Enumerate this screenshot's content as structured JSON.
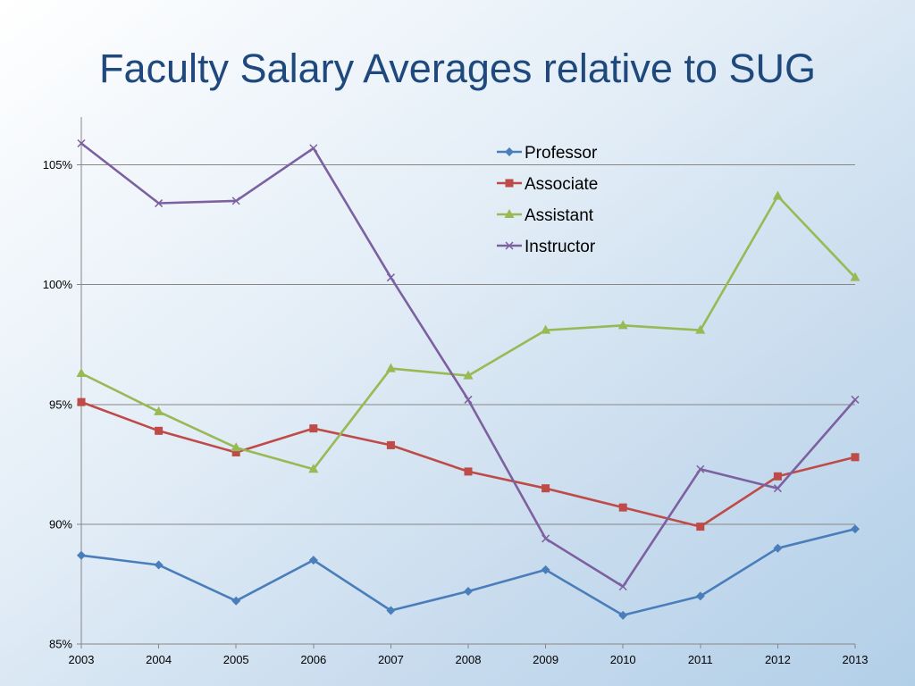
{
  "chart_data": {
    "type": "line",
    "title": "Faculty Salary Averages relative to SUG",
    "categories": [
      "2003",
      "2004",
      "2005",
      "2006",
      "2007",
      "2008",
      "2009",
      "2010",
      "2011",
      "2012",
      "2013"
    ],
    "ylim": [
      85,
      107
    ],
    "yticks": [
      85,
      90,
      95,
      100,
      105
    ],
    "ytick_labels": [
      "85%",
      "90%",
      "95%",
      "100%",
      "105%"
    ],
    "grid": true,
    "legend_position": "top-right",
    "series": [
      {
        "name": "Professor",
        "color": "#4a7ebb",
        "marker": "diamond",
        "values": [
          88.7,
          88.3,
          86.8,
          88.5,
          86.4,
          87.2,
          88.1,
          86.2,
          87.0,
          89.0,
          89.8
        ]
      },
      {
        "name": "Associate",
        "color": "#be4b48",
        "marker": "square",
        "values": [
          95.1,
          93.9,
          93.0,
          94.0,
          93.3,
          92.2,
          91.5,
          90.7,
          89.9,
          92.0,
          92.8
        ]
      },
      {
        "name": "Assistant",
        "color": "#98b954",
        "marker": "triangle",
        "values": [
          96.3,
          94.7,
          93.2,
          92.3,
          96.5,
          96.2,
          98.1,
          98.3,
          98.1,
          103.7,
          100.3
        ]
      },
      {
        "name": "Instructor",
        "color": "#7d60a0",
        "marker": "x",
        "values": [
          105.9,
          103.4,
          103.5,
          105.7,
          100.3,
          95.2,
          89.4,
          87.4,
          92.3,
          91.5,
          95.2
        ]
      }
    ]
  }
}
